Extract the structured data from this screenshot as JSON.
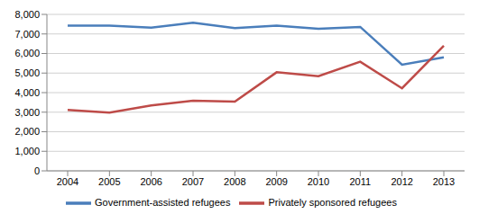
{
  "chart_data": {
    "type": "line",
    "categories": [
      "2004",
      "2005",
      "2006",
      "2007",
      "2008",
      "2009",
      "2010",
      "2011",
      "2012",
      "2013"
    ],
    "series": [
      {
        "name": "Government-assisted refugees",
        "color": "#4a7ebb",
        "values": [
          7430,
          7420,
          7320,
          7570,
          7300,
          7420,
          7270,
          7360,
          5430,
          5800
        ]
      },
      {
        "name": "Privately sponsored refugees",
        "color": "#be4b48",
        "values": [
          3120,
          2980,
          3340,
          3590,
          3540,
          5040,
          4840,
          5580,
          4220,
          6400
        ]
      }
    ],
    "ylim": [
      0,
      8000
    ],
    "yticks": [
      0,
      {
        "value": 1000,
        "label": "1,000"
      },
      {
        "value": 2000,
        "label": "2,000"
      },
      {
        "value": 3000,
        "label": "3,000"
      },
      {
        "value": 4000,
        "label": "4,000"
      },
      {
        "value": 5000,
        "label": "5,000"
      },
      {
        "value": 6000,
        "label": "6,000"
      },
      {
        "value": 7000,
        "label": "7,000"
      },
      {
        "value": 8000,
        "label": "8,000"
      }
    ],
    "grid": true,
    "legend": "bottom",
    "marker": "none",
    "line_style": "solid"
  }
}
